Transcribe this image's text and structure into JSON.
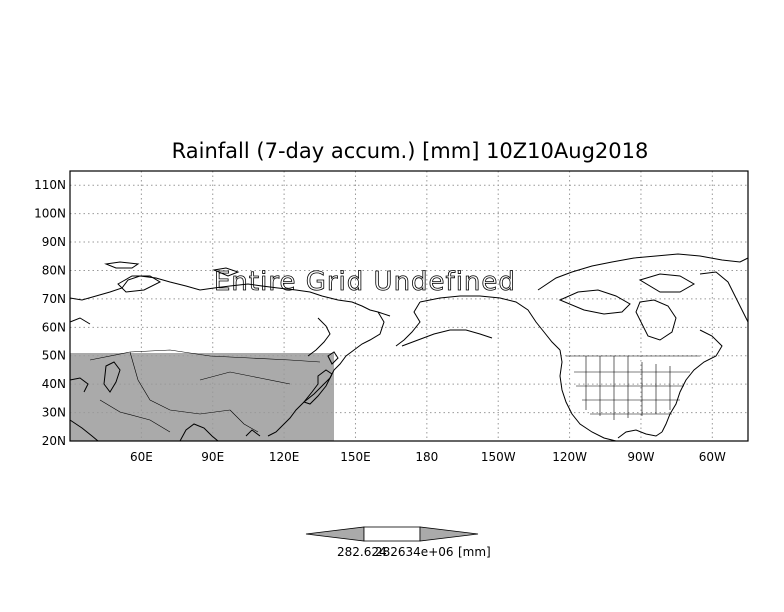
{
  "map": {
    "title": "Rainfall (7-day accum.) [mm] 10Z10Aug2018",
    "overlay_text": "Entire Grid Undefined",
    "lat_labels": [
      "110N",
      "100N",
      "90N",
      "80N",
      "70N",
      "60N",
      "50N",
      "40N",
      "30N",
      "20N"
    ],
    "lon_labels": [
      "60E",
      "90E",
      "120E",
      "150E",
      "180",
      "150W",
      "120W",
      "90W",
      "60W"
    ],
    "lat_range": [
      20,
      115
    ],
    "lon_range": [
      30,
      315
    ],
    "shaded_region": {
      "lat_range": [
        20,
        50
      ],
      "lon_range": [
        30,
        150
      ],
      "color": "#aaaaaa"
    },
    "grid": true
  },
  "colorbar": {
    "label_min": "282.624",
    "label_max": "282634e+06",
    "unit": "[mm]",
    "fill_color": "#aaaaaa"
  }
}
